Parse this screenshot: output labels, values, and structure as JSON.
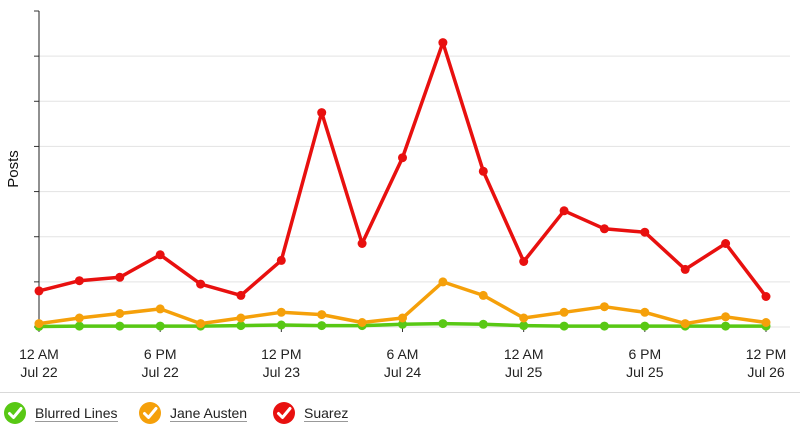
{
  "chart_data": {
    "type": "line",
    "ylabel": "Posts",
    "xlabel": "",
    "title": "",
    "ylim": [
      0,
      140
    ],
    "x_tick_labels": [
      {
        "line1": "12 AM",
        "line2": "Jul 22"
      },
      {
        "line1": "6 PM",
        "line2": "Jul 22"
      },
      {
        "line1": "12 PM",
        "line2": "Jul 23"
      },
      {
        "line1": "6 AM",
        "line2": "Jul 24"
      },
      {
        "line1": "12 AM",
        "line2": "Jul 25"
      },
      {
        "line1": "6 PM",
        "line2": "Jul 25"
      },
      {
        "line1": "12 PM",
        "line2": "Jul 26"
      }
    ],
    "x": [
      "Jul 22 12 AM",
      "Jul 22 6 AM",
      "Jul 22 12 PM",
      "Jul 22 6 PM",
      "Jul 23 12 AM",
      "Jul 23 6 AM",
      "Jul 23 12 PM",
      "Jul 23 6 PM",
      "Jul 24 12 AM",
      "Jul 24 6 AM",
      "Jul 24 12 PM",
      "Jul 24 6 PM",
      "Jul 25 12 AM",
      "Jul 25 6 AM",
      "Jul 25 12 PM",
      "Jul 25 6 PM",
      "Jul 26 12 AM",
      "Jul 26 6 AM",
      "Jul 26 12 PM"
    ],
    "grid": true,
    "series": [
      {
        "name": "Blurred Lines",
        "color": "#58c814",
        "values": [
          0.2,
          0.4,
          0.4,
          0.4,
          0.4,
          0.6,
          0.9,
          0.6,
          0.6,
          1.2,
          1.5,
          1.2,
          0.6,
          0.4,
          0.4,
          0.4,
          0.4,
          0.4,
          0.4
        ]
      },
      {
        "name": "Jane Austen",
        "color": "#f5a00a",
        "values": [
          1.5,
          4,
          6,
          8,
          1.5,
          4,
          6.5,
          5.5,
          2,
          4,
          20,
          14,
          4,
          6.5,
          9,
          6.5,
          1.5,
          4.5,
          2
        ]
      },
      {
        "name": "Suarez",
        "color": "#e8100f",
        "values": [
          16,
          20.5,
          22,
          32,
          19,
          14,
          29.5,
          95,
          37,
          75,
          126,
          69,
          29,
          51.5,
          43.5,
          42,
          25.5,
          37,
          13.5
        ]
      }
    ]
  },
  "legend": {
    "items": [
      {
        "label": "Blurred Lines",
        "color": "#58c814"
      },
      {
        "label": "Jane Austen",
        "color": "#f5a00a"
      },
      {
        "label": "Suarez",
        "color": "#e8100f"
      }
    ]
  }
}
